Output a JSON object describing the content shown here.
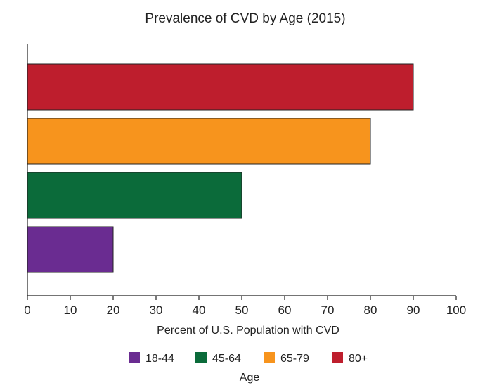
{
  "chart_data": {
    "type": "bar",
    "orientation": "horizontal",
    "title": "Prevalence of CVD by Age (2015)",
    "xlabel": "Percent of U.S. Population with CVD",
    "ylabel": "",
    "xlim": [
      0,
      100
    ],
    "xticks": [
      0,
      10,
      20,
      30,
      40,
      50,
      60,
      70,
      80,
      90,
      100
    ],
    "categories": [
      "18-44",
      "45-64",
      "65-79",
      "80+"
    ],
    "values": [
      20,
      50,
      80,
      90
    ],
    "colors": [
      "#6a2c91",
      "#0b6b3a",
      "#f7941d",
      "#be1e2d"
    ],
    "legend": {
      "title": "Age",
      "placement": "bottom",
      "entries": [
        "18-44",
        "45-64",
        "65-79",
        "80+"
      ]
    },
    "grid": false
  }
}
